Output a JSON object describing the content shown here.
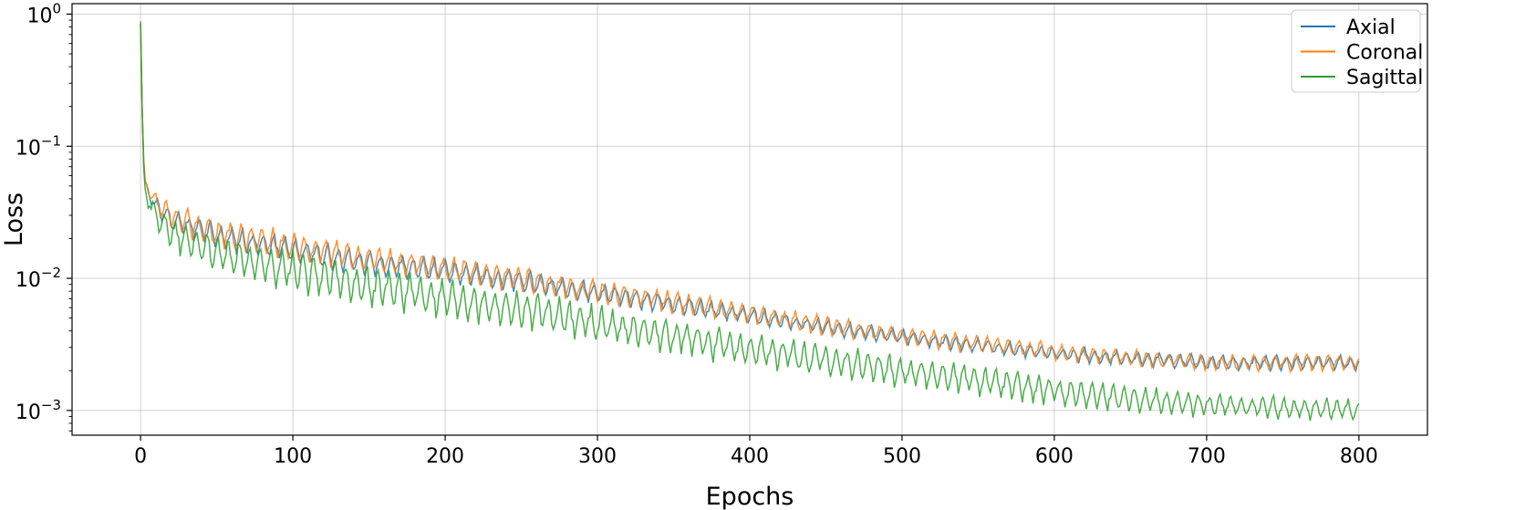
{
  "chart_data": {
    "type": "line",
    "xlabel": "Epochs",
    "ylabel": "Loss",
    "yscale": "log",
    "xlim": [
      -45,
      845
    ],
    "ylim": [
      0.00065,
      1.2
    ],
    "xticks": [
      0,
      100,
      200,
      300,
      400,
      500,
      600,
      700,
      800
    ],
    "xtick_labels": [
      "0",
      "100",
      "200",
      "300",
      "400",
      "500",
      "600",
      "700",
      "800"
    ],
    "yticks": [
      0.001,
      0.01,
      0.1,
      1
    ],
    "ytick_labels": [
      {
        "base": "10",
        "exp": "−3"
      },
      {
        "base": "10",
        "exp": "−2"
      },
      {
        "base": "10",
        "exp": "−1"
      },
      {
        "base": "10",
        "exp": "0"
      }
    ],
    "grid": true,
    "legend_position": "top-right",
    "series": [
      {
        "name": "Axial",
        "color": "#1f77b4",
        "x": [
          0,
          1,
          2,
          3,
          5,
          10,
          20,
          50,
          100,
          150,
          200,
          250,
          300,
          350,
          400,
          450,
          500,
          550,
          600,
          650,
          700,
          750,
          800
        ],
        "values": [
          0.85,
          0.2,
          0.08,
          0.055,
          0.045,
          0.035,
          0.028,
          0.021,
          0.0165,
          0.013,
          0.0115,
          0.0095,
          0.0078,
          0.0064,
          0.0052,
          0.0043,
          0.0036,
          0.0031,
          0.0027,
          0.0025,
          0.0023,
          0.0023,
          0.0023
        ],
        "osc_amp": [
          0,
          0,
          0,
          0,
          0.07,
          0.12,
          0.16,
          0.18,
          0.18,
          0.17,
          0.16,
          0.15,
          0.14,
          0.13,
          0.12,
          0.11,
          0.1,
          0.1,
          0.1,
          0.1,
          0.1,
          0.1,
          0.1
        ]
      },
      {
        "name": "Coronal",
        "color": "#ff7f0e",
        "x": [
          0,
          1,
          2,
          3,
          5,
          10,
          20,
          50,
          100,
          150,
          200,
          250,
          300,
          350,
          400,
          450,
          500,
          550,
          600,
          650,
          700,
          750,
          800
        ],
        "values": [
          0.85,
          0.2,
          0.08,
          0.055,
          0.046,
          0.037,
          0.029,
          0.022,
          0.0175,
          0.014,
          0.012,
          0.0098,
          0.008,
          0.0066,
          0.0054,
          0.0044,
          0.0037,
          0.0032,
          0.0028,
          0.0025,
          0.0023,
          0.0023,
          0.0023
        ],
        "osc_amp": [
          0,
          0,
          0,
          0,
          0.07,
          0.14,
          0.18,
          0.2,
          0.2,
          0.19,
          0.18,
          0.17,
          0.16,
          0.15,
          0.14,
          0.13,
          0.12,
          0.12,
          0.12,
          0.11,
          0.11,
          0.11,
          0.11
        ]
      },
      {
        "name": "Sagittal",
        "color": "#2ca02c",
        "x": [
          0,
          1,
          2,
          3,
          5,
          10,
          20,
          50,
          100,
          150,
          200,
          250,
          300,
          350,
          400,
          450,
          500,
          550,
          600,
          650,
          700,
          750,
          800
        ],
        "values": [
          0.88,
          0.2,
          0.07,
          0.048,
          0.038,
          0.03,
          0.022,
          0.0155,
          0.0115,
          0.0088,
          0.0072,
          0.0058,
          0.0046,
          0.0036,
          0.0029,
          0.0024,
          0.002,
          0.0017,
          0.0014,
          0.00125,
          0.0011,
          0.00105,
          0.001
        ],
        "osc_amp": [
          0,
          0,
          0,
          0,
          0.1,
          0.18,
          0.24,
          0.26,
          0.27,
          0.27,
          0.27,
          0.26,
          0.25,
          0.24,
          0.23,
          0.22,
          0.21,
          0.2,
          0.19,
          0.18,
          0.16,
          0.15,
          0.15
        ]
      }
    ]
  }
}
